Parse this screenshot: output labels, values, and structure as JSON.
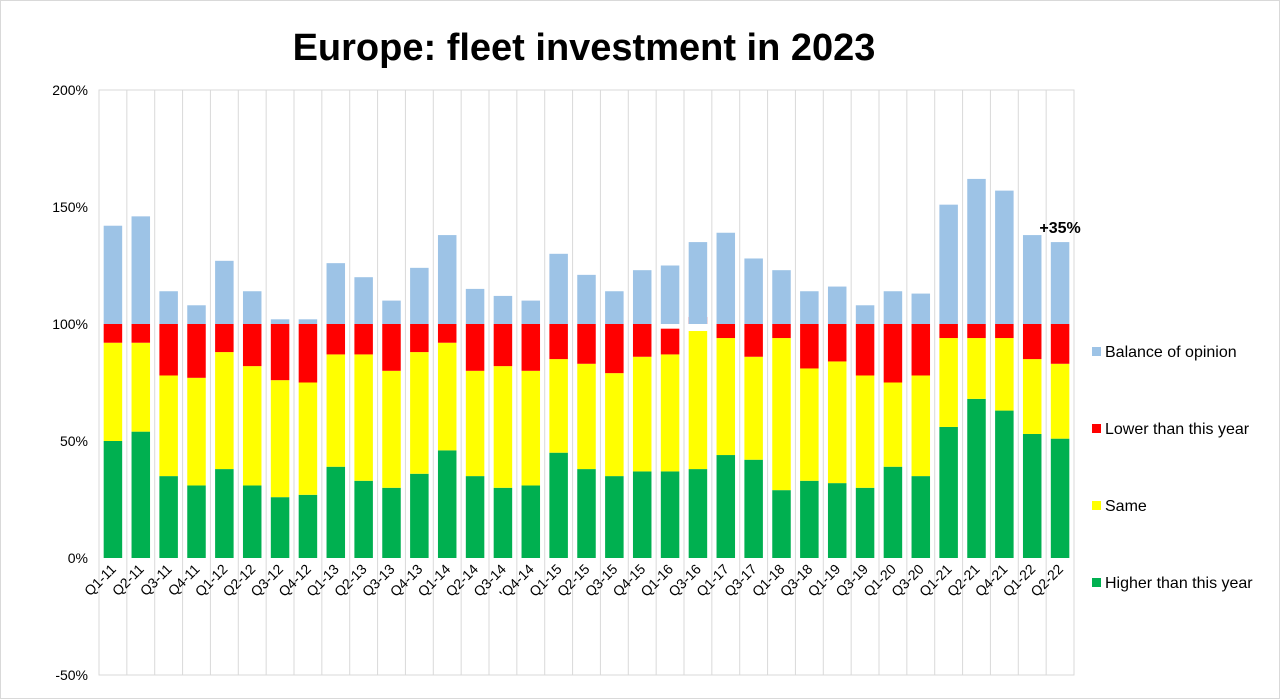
{
  "chart_data": {
    "type": "bar",
    "stacked": true,
    "title": "Europe: fleet investment in 2023",
    "xlabel": "",
    "ylabel": "",
    "ylim": [
      -50,
      200
    ],
    "yticks": [
      -50,
      0,
      50,
      100,
      150,
      200
    ],
    "ytick_labels": [
      "-50%",
      "0%",
      "50%",
      "100%",
      "150%",
      "200%"
    ],
    "grid": "vertical",
    "legend_position": "right",
    "categories": [
      "Q1-11",
      "Q2-11",
      "Q3-11",
      "Q4-11",
      "Q1-12",
      "Q2-12",
      "Q3-12",
      "Q4-12",
      "Q1-13",
      "Q2-13",
      "Q3-13",
      "Q4-13",
      "Q1-14",
      "Q2-14",
      "Q3-14",
      "'Q4-14",
      "Q1-15",
      "Q2-15",
      "Q3-15",
      "Q4-15",
      "Q1-16",
      "Q3-16",
      "Q1-17",
      "Q3-17",
      "Q1-18",
      "Q3-18",
      "Q1-19",
      "Q3-19",
      "Q1-20",
      "Q3-20",
      "Q1-21",
      "Q2-21",
      "Q4-21",
      "Q1-22",
      "Q2-22"
    ],
    "series": [
      {
        "name": "Higher than this year",
        "color": "#00b050",
        "values": [
          50,
          54,
          35,
          31,
          38,
          31,
          26,
          27,
          39,
          33,
          30,
          36,
          46,
          35,
          30,
          31,
          45,
          38,
          35,
          37,
          37,
          38,
          44,
          42,
          29,
          33,
          32,
          30,
          39,
          35,
          56,
          68,
          63,
          53,
          51
        ]
      },
      {
        "name": "Same",
        "color": "#ffff00",
        "values": [
          42,
          38,
          43,
          46,
          50,
          51,
          50,
          48,
          48,
          54,
          50,
          52,
          46,
          45,
          52,
          49,
          40,
          45,
          44,
          49,
          50,
          59,
          50,
          44,
          65,
          48,
          52,
          48,
          36,
          43,
          38,
          26,
          31,
          32,
          32
        ]
      },
      {
        "name": "Lower than this year",
        "color": "#ff0000",
        "values": [
          8,
          8,
          22,
          23,
          12,
          18,
          24,
          25,
          13,
          13,
          20,
          12,
          8,
          20,
          18,
          20,
          15,
          17,
          21,
          14,
          11,
          -3,
          6,
          14,
          6,
          19,
          16,
          22,
          25,
          22,
          6,
          6,
          6,
          15,
          17
        ]
      },
      {
        "name": "Balance of opinion",
        "color": "#9dc3e6",
        "values": [
          42,
          46,
          14,
          8,
          27,
          14,
          2,
          2,
          26,
          20,
          10,
          24,
          38,
          15,
          12,
          10,
          30,
          21,
          14,
          23,
          25,
          35,
          39,
          28,
          23,
          14,
          16,
          8,
          14,
          13,
          51,
          62,
          57,
          38,
          35
        ]
      }
    ],
    "annotations": [
      {
        "category": "Q2-22",
        "text": "+35%"
      }
    ]
  }
}
